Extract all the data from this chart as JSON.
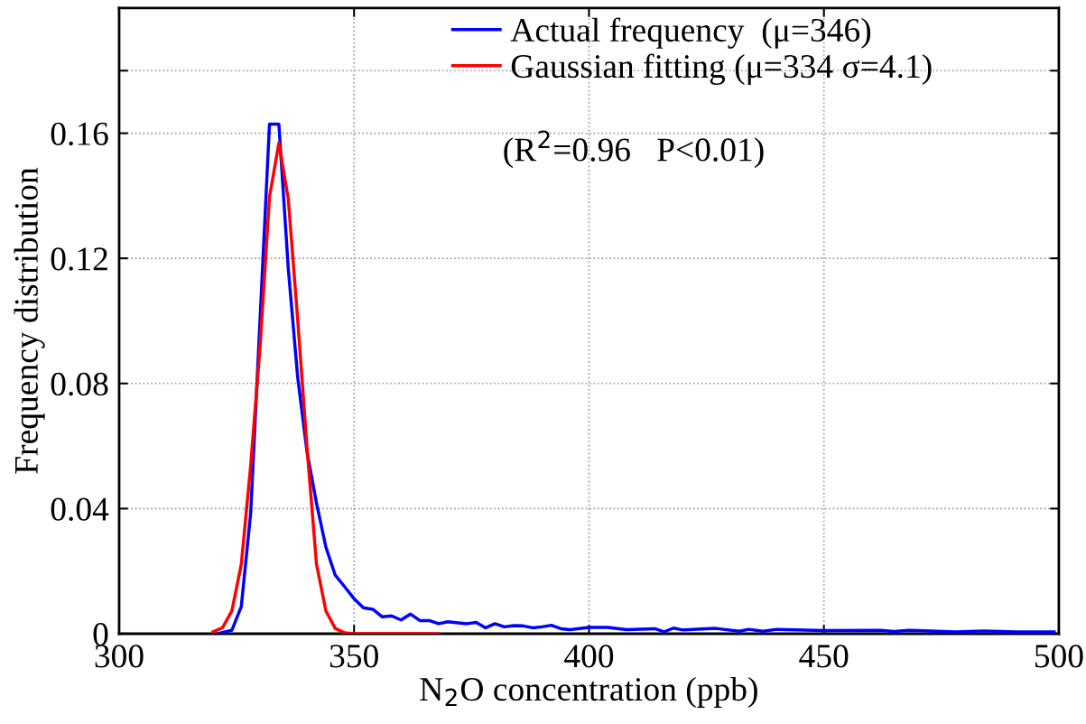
{
  "chart_data": {
    "type": "line",
    "xlabel": "N$_{2}$O concentration (ppb)",
    "ylabel": "Frequency distribution",
    "xlim": [
      300,
      500
    ],
    "xticks": [
      300,
      350,
      400,
      450,
      500
    ],
    "ylim": [
      0,
      0.2
    ],
    "yticks": [
      0,
      0.04,
      0.08,
      0.12,
      0.16,
      {
        "value": 0.18,
        "label": null
      }
    ],
    "grid": true,
    "legend": "top right",
    "line_style": "solid",
    "marker": "none",
    "annotations": [
      "(R$^{2}$=0.96   P<0.01)"
    ],
    "series": [
      {
        "name": "Actual frequency  (μ=346)",
        "color": "#0000ff",
        "x": [
          321,
          324,
          326,
          328,
          332,
          334,
          336,
          338,
          340,
          342,
          344,
          346,
          348,
          350,
          352,
          354,
          356,
          358,
          360,
          362,
          364,
          366,
          368,
          370,
          374,
          376,
          378,
          380,
          382,
          384,
          386,
          388,
          390,
          392,
          394,
          396,
          400,
          404,
          408,
          414,
          416,
          418,
          420,
          424,
          427,
          432,
          434,
          437,
          440,
          450,
          462,
          465,
          468,
          478,
          484,
          491,
          499
        ],
        "values": [
          0,
          0.0011,
          0.0087,
          0.0386,
          0.1629,
          0.1629,
          0.1167,
          0.082,
          0.058,
          0.0418,
          0.0277,
          0.0187,
          0.015,
          0.0112,
          0.0083,
          0.0078,
          0.0054,
          0.0057,
          0.0044,
          0.0063,
          0.0042,
          0.0042,
          0.0032,
          0.0038,
          0.0032,
          0.0036,
          0.0019,
          0.0032,
          0.0022,
          0.0026,
          0.0025,
          0.0019,
          0.0022,
          0.0027,
          0.0016,
          0.0013,
          0.002,
          0.002,
          0.0013,
          0.0016,
          0.0006,
          0.0018,
          0.0012,
          0.0015,
          0.0017,
          0.0008,
          0.0014,
          0.0008,
          0.0014,
          0.001,
          0.0011,
          0.0007,
          0.0011,
          0.0006,
          0.0009,
          0.0006,
          0.0006
        ]
      },
      {
        "name": "Gaussian fitting (μ=334 σ=4.1)",
        "color": "#ff0000",
        "x": [
          320,
          322,
          324,
          326,
          328,
          330,
          332,
          334,
          336,
          338,
          340,
          342,
          344,
          346,
          348,
          350,
          352,
          354,
          356,
          358,
          360,
          362,
          364,
          366,
          368
        ],
        "values": [
          0.0006,
          0.0019,
          0.0073,
          0.0222,
          0.0538,
          0.0918,
          0.1396,
          0.1569,
          0.139,
          0.1005,
          0.0592,
          0.0223,
          0.0073,
          0.0017,
          0.0003,
          0,
          0,
          0,
          0,
          0,
          0,
          0,
          0,
          0,
          0
        ]
      }
    ]
  }
}
